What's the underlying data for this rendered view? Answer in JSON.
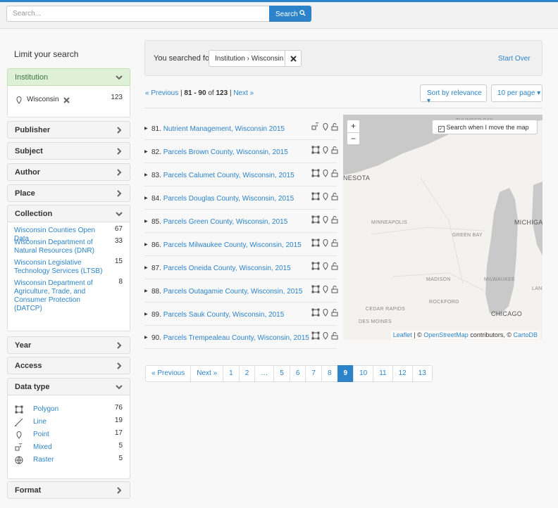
{
  "header": {
    "search_placeholder": "Search...",
    "search_button": "Search"
  },
  "sidebar": {
    "title": "Limit your search",
    "facets": [
      {
        "label": "Institution",
        "open": true,
        "items": [
          {
            "label": "Wisconsin",
            "count": 123
          }
        ]
      },
      {
        "label": "Publisher"
      },
      {
        "label": "Subject"
      },
      {
        "label": "Author"
      },
      {
        "label": "Place"
      },
      {
        "label": "Collection",
        "open": true,
        "items": [
          {
            "label": "Wisconsin Counties Open Data",
            "count": 67
          },
          {
            "label": "Wisconsin Department of Natural Resources (DNR)",
            "count": 33
          },
          {
            "label": "Wisconsin Legislative Technology Services (LTSB)",
            "count": 15
          },
          {
            "label": "Wisconsin Department of Agriculture, Trade, and Consumer Protection (DATCP)",
            "count": 8
          }
        ]
      },
      {
        "label": "Year"
      },
      {
        "label": "Access"
      },
      {
        "label": "Data type",
        "open": true,
        "items": [
          {
            "label": "Polygon",
            "count": 76
          },
          {
            "label": "Line",
            "count": 19
          },
          {
            "label": "Point",
            "count": 17
          },
          {
            "label": "Mixed",
            "count": 5
          },
          {
            "label": "Raster",
            "count": 5
          }
        ]
      },
      {
        "label": "Format"
      }
    ]
  },
  "constraints": {
    "label": "You searched for:",
    "value": "Institution › Wisconsin",
    "start_over": "Start Over"
  },
  "summary": {
    "previous": "« Previous",
    "separator": "|",
    "range": "81 - 90",
    "of": "of",
    "total": 123,
    "next": "Next »",
    "sort": "Sort by relevance",
    "per_page": "10 per page"
  },
  "results": [
    {
      "index": "81.",
      "title": "Nutrient Management, Wisconsin 2015"
    },
    {
      "index": "82.",
      "title": "Parcels Brown County, Wisconsin, 2015"
    },
    {
      "index": "83.",
      "title": "Parcels Calumet County, Wisconsin, 2015"
    },
    {
      "index": "84.",
      "title": "Parcels Douglas County, Wisconsin, 2015"
    },
    {
      "index": "85.",
      "title": "Parcels Green County, Wisconsin, 2015"
    },
    {
      "index": "86.",
      "title": "Parcels Milwaukee County, Wisconsin, 2015"
    },
    {
      "index": "87.",
      "title": "Parcels Oneida County, Wisconsin, 2015"
    },
    {
      "index": "88.",
      "title": "Parcels Outagamie County, Wisconsin, 2015"
    },
    {
      "index": "89.",
      "title": "Parcels Sauk County, Wisconsin, 2015"
    },
    {
      "index": "90.",
      "title": "Parcels Trempealeau County, Wisconsin, 2015"
    }
  ],
  "map": {
    "zoom_in": "+",
    "zoom_out": "−",
    "search_toggle": "Search when I move the map",
    "labels": [
      "THUNDER BAY",
      "NESOTA",
      "MINNEAPOLIS",
      "GREEN BAY",
      "MICHIGA",
      "MADISON",
      "MILWAUKEE",
      "LANS",
      "ROCKFORD",
      "CEDAR RAPIDS",
      "DES MOINES",
      "CHICAGO"
    ],
    "attribution": {
      "leaflet": "Leaflet",
      "sep": "| ©",
      "osm": "OpenStreetMap",
      "contributors": "contributors, ©",
      "carto": "CartoDB"
    }
  },
  "pagination": {
    "previous": "« Previous",
    "next": "Next »",
    "pages": [
      1,
      2,
      "…",
      5,
      6,
      7,
      8,
      9,
      10,
      11,
      12,
      13
    ],
    "current": 9
  }
}
